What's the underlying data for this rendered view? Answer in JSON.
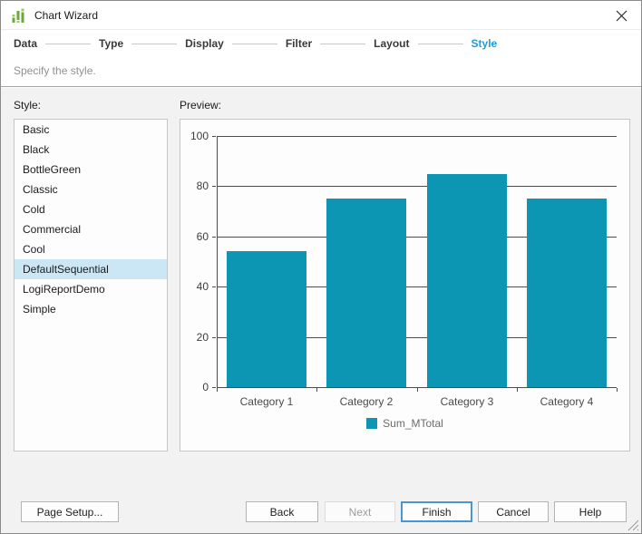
{
  "window": {
    "title": "Chart Wizard"
  },
  "steps": [
    {
      "label": "Data",
      "active": false
    },
    {
      "label": "Type",
      "active": false
    },
    {
      "label": "Display",
      "active": false
    },
    {
      "label": "Filter",
      "active": false
    },
    {
      "label": "Layout",
      "active": false
    },
    {
      "label": "Style",
      "active": true
    }
  ],
  "subtitle": "Specify the style.",
  "style_panel": {
    "label": "Style:",
    "items": [
      "Basic",
      "Black",
      "BottleGreen",
      "Classic",
      "Cold",
      "Commercial",
      "Cool",
      "DefaultSequential",
      "LogiReportDemo",
      "Simple"
    ],
    "selected": "DefaultSequential"
  },
  "preview_panel": {
    "label": "Preview:"
  },
  "chart_data": {
    "type": "bar",
    "categories": [
      "Category 1",
      "Category 2",
      "Category 3",
      "Category 4"
    ],
    "series": [
      {
        "name": "Sum_MTotal",
        "values": [
          54,
          75,
          85,
          75
        ],
        "color": "#0d96b4"
      }
    ],
    "title": "",
    "xlabel": "",
    "ylabel": "",
    "ylim": [
      0,
      100
    ],
    "yticks": [
      0,
      20,
      40,
      60,
      80,
      100
    ],
    "grid": true,
    "legend_position": "bottom"
  },
  "footer": {
    "page_setup": "Page Setup...",
    "back": "Back",
    "next": "Next",
    "finish": "Finish",
    "cancel": "Cancel",
    "help": "Help"
  },
  "colors": {
    "accent_blue": "#1f9cd9",
    "bar_teal": "#0d96b4",
    "selected_bg": "#cbe7f6",
    "default_button_border": "#4a96d2"
  }
}
